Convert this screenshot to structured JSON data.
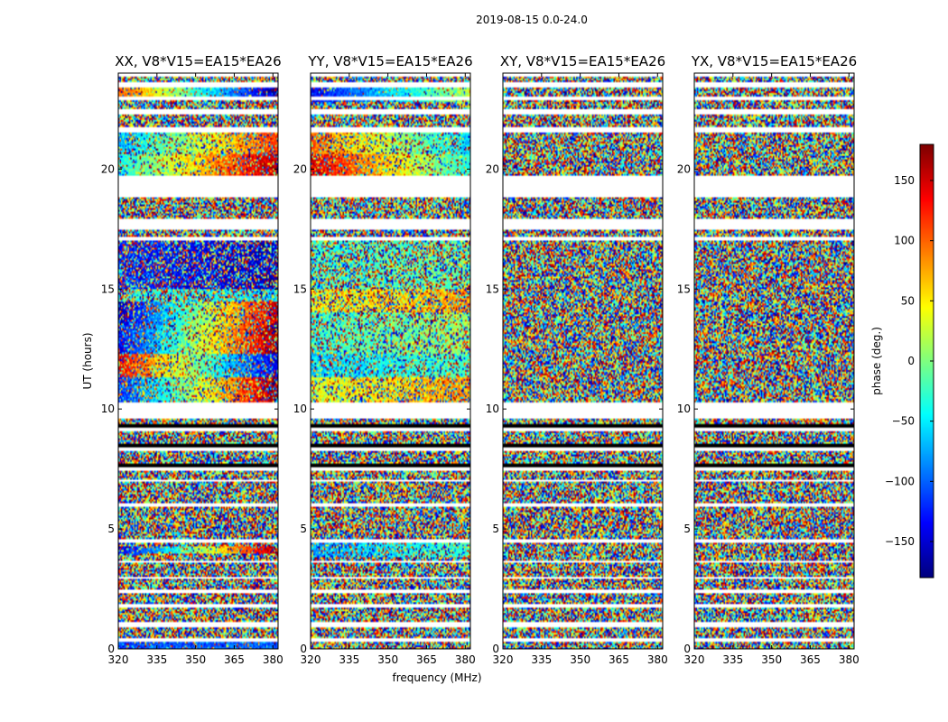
{
  "chart_data": {
    "type": "heatmap",
    "suptitle": "2019-08-15 0.0-24.0",
    "xlabel": "frequency (MHz)",
    "ylabel": "UT (hours)",
    "xlim": [
      320,
      382
    ],
    "ylim": [
      0,
      24
    ],
    "xticks": [
      320,
      335,
      350,
      365,
      380
    ],
    "yticks": [
      0,
      5,
      10,
      15,
      20
    ],
    "colorbar": {
      "label": "phase (deg.)",
      "range": [
        -180,
        180
      ],
      "ticks": [
        -150,
        -100,
        -50,
        0,
        50,
        100,
        150
      ],
      "tick_labels": [
        "−150",
        "−100",
        "−50",
        "0",
        "50",
        "100",
        "150"
      ],
      "colormap": [
        "#00007f",
        "#0000ff",
        "#007fff",
        "#00ffff",
        "#7fff7f",
        "#ffff00",
        "#ff7f00",
        "#ff0000",
        "#7f0000"
      ]
    },
    "panels": [
      {
        "title": "XX, V8*V15=EA15*EA26",
        "structured": [
          {
            "t0": 0.0,
            "t1": 0.3,
            "phase_start": -110,
            "phase_end": -100,
            "coherence": 0.8
          },
          {
            "t0": 4.0,
            "t1": 4.3,
            "phase_start": -150,
            "phase_end": 170,
            "coherence": 0.75
          },
          {
            "t0": 10.3,
            "t1": 11.3,
            "phase_start": -120,
            "phase_end": 170,
            "coherence": 0.6
          },
          {
            "t0": 11.3,
            "t1": 12.3,
            "phase_start": 140,
            "phase_end": -150,
            "coherence": 0.6
          },
          {
            "t0": 12.3,
            "t1": 13.5,
            "phase_start": -140,
            "phase_end": 175,
            "coherence": 0.65
          },
          {
            "t0": 13.5,
            "t1": 14.5,
            "phase_start": -160,
            "phase_end": 160,
            "coherence": 0.6
          },
          {
            "t0": 14.5,
            "t1": 15.0,
            "phase_start": -20,
            "phase_end": -60,
            "coherence": 0.4
          },
          {
            "t0": 15.0,
            "t1": 17.0,
            "phase_start": -120,
            "phase_end": -160,
            "coherence": 0.45
          },
          {
            "t0": 19.7,
            "t1": 20.6,
            "phase_start": -40,
            "phase_end": 165,
            "coherence": 0.7
          },
          {
            "t0": 20.6,
            "t1": 21.5,
            "phase_start": -70,
            "phase_end": 120,
            "coherence": 0.6
          },
          {
            "t0": 22.9,
            "t1": 23.4,
            "phase_start": 110,
            "phase_end": -170,
            "coherence": 0.8
          }
        ]
      },
      {
        "title": "YY, V8*V15=EA15*EA26",
        "structured": [
          {
            "t0": 3.8,
            "t1": 4.6,
            "phase_start": -80,
            "phase_end": -20,
            "coherence": 0.6
          },
          {
            "t0": 10.3,
            "t1": 11.3,
            "phase_start": 30,
            "phase_end": 80,
            "coherence": 0.55
          },
          {
            "t0": 11.3,
            "t1": 12.3,
            "phase_start": -60,
            "phase_end": -20,
            "coherence": 0.6
          },
          {
            "t0": 12.3,
            "t1": 14.0,
            "phase_start": -30,
            "phase_end": 10,
            "coherence": 0.5
          },
          {
            "t0": 14.0,
            "t1": 15.0,
            "phase_start": 40,
            "phase_end": 80,
            "coherence": 0.5
          },
          {
            "t0": 15.0,
            "t1": 17.0,
            "phase_start": -30,
            "phase_end": -10,
            "coherence": 0.35
          },
          {
            "t0": 19.7,
            "t1": 20.6,
            "phase_start": 150,
            "phase_end": -40,
            "coherence": 0.7
          },
          {
            "t0": 20.6,
            "t1": 21.5,
            "phase_start": 100,
            "phase_end": -60,
            "coherence": 0.65
          },
          {
            "t0": 22.8,
            "t1": 23.4,
            "phase_start": -140,
            "phase_end": 20,
            "coherence": 0.85
          }
        ]
      },
      {
        "title": "XY, V8*V15=EA15*EA26",
        "structured": []
      },
      {
        "title": "YX, V8*V15=EA15*EA26",
        "structured": []
      }
    ],
    "flagged_time_ranges": [
      [
        0.3,
        0.45
      ],
      [
        0.9,
        1.15
      ],
      [
        1.7,
        1.85
      ],
      [
        2.3,
        2.45
      ],
      [
        2.9,
        3.0
      ],
      [
        3.6,
        3.7
      ],
      [
        4.45,
        4.55
      ],
      [
        5.95,
        6.05
      ],
      [
        7.0,
        7.08
      ],
      [
        9.6,
        10.3
      ],
      [
        17.0,
        17.2
      ],
      [
        17.5,
        17.9
      ],
      [
        18.8,
        19.7
      ],
      [
        21.5,
        21.75
      ],
      [
        22.3,
        22.5
      ],
      [
        22.9,
        23.0
      ],
      [
        23.4,
        23.6
      ],
      [
        23.85,
        24.0
      ]
    ],
    "dense_flagging_ranges": [
      [
        7.1,
        9.5
      ]
    ]
  }
}
